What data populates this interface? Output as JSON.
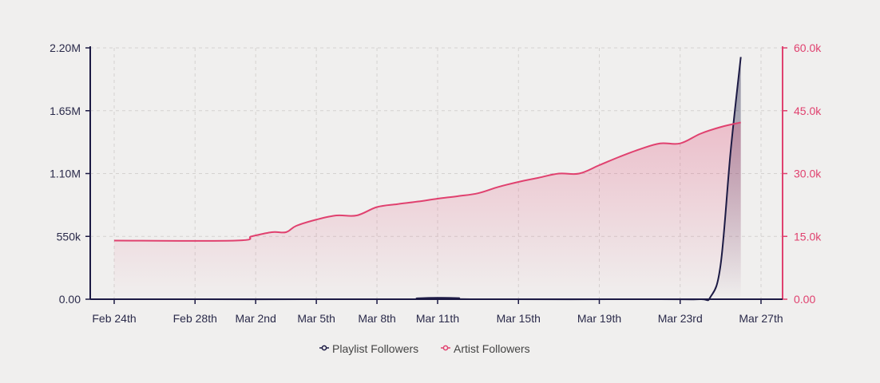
{
  "chart_data": {
    "type": "line",
    "title": "",
    "colors": {
      "playlist": "#1c1a44",
      "artist": "#e0416f",
      "grid": "#d4d2d0",
      "background": "#f0efee"
    },
    "legend_position": "bottom-center",
    "grid": true,
    "x_range_days": [
      0,
      32
    ],
    "x_ticks": [
      {
        "day": 0,
        "label": "Feb 24th"
      },
      {
        "day": 4,
        "label": "Feb 28th"
      },
      {
        "day": 7,
        "label": "Mar 2nd"
      },
      {
        "day": 10,
        "label": "Mar 5th"
      },
      {
        "day": 13,
        "label": "Mar 8th"
      },
      {
        "day": 16,
        "label": "Mar 11th"
      },
      {
        "day": 20,
        "label": "Mar 15th"
      },
      {
        "day": 24,
        "label": "Mar 19th"
      },
      {
        "day": 28,
        "label": "Mar 23rd"
      },
      {
        "day": 32,
        "label": "Mar 27th"
      }
    ],
    "y_left": {
      "range": [
        0,
        2200000
      ],
      "ticks": [
        {
          "value": 0,
          "label": "0.00"
        },
        {
          "value": 550000,
          "label": "550k"
        },
        {
          "value": 1100000,
          "label": "1.10M"
        },
        {
          "value": 1650000,
          "label": "1.65M"
        },
        {
          "value": 2200000,
          "label": "2.20M"
        }
      ]
    },
    "y_right": {
      "range": [
        0,
        60000
      ],
      "ticks": [
        {
          "value": 0,
          "label": "0.00"
        },
        {
          "value": 15000,
          "label": "15.0k"
        },
        {
          "value": 30000,
          "label": "30.0k"
        },
        {
          "value": 45000,
          "label": "45.0k"
        },
        {
          "value": 60000,
          "label": "60.0k"
        }
      ]
    },
    "series": [
      {
        "name": "Playlist Followers",
        "axis": "left",
        "x_days": [
          0,
          14,
          15,
          16,
          17,
          18,
          27,
          29,
          29.5,
          30,
          30.5,
          31
        ],
        "values": [
          0,
          0,
          8000,
          12000,
          10000,
          0,
          0,
          0,
          20000,
          300000,
          1300000,
          2120000
        ]
      },
      {
        "name": "Artist Followers",
        "axis": "right",
        "x_days": [
          0,
          6,
          6.8,
          7.8,
          8.5,
          9,
          10,
          11,
          12,
          13,
          14,
          15,
          16,
          17,
          18,
          19,
          20,
          21,
          22,
          23,
          24,
          25,
          26,
          27,
          28,
          29,
          30,
          31
        ],
        "values": [
          14000,
          14000,
          15000,
          16000,
          16000,
          17500,
          19000,
          20000,
          20000,
          22000,
          22700,
          23300,
          24000,
          24600,
          25300,
          26800,
          28000,
          29000,
          30000,
          30000,
          32000,
          34000,
          35800,
          37200,
          37200,
          39500,
          41100,
          42200
        ]
      }
    ]
  }
}
